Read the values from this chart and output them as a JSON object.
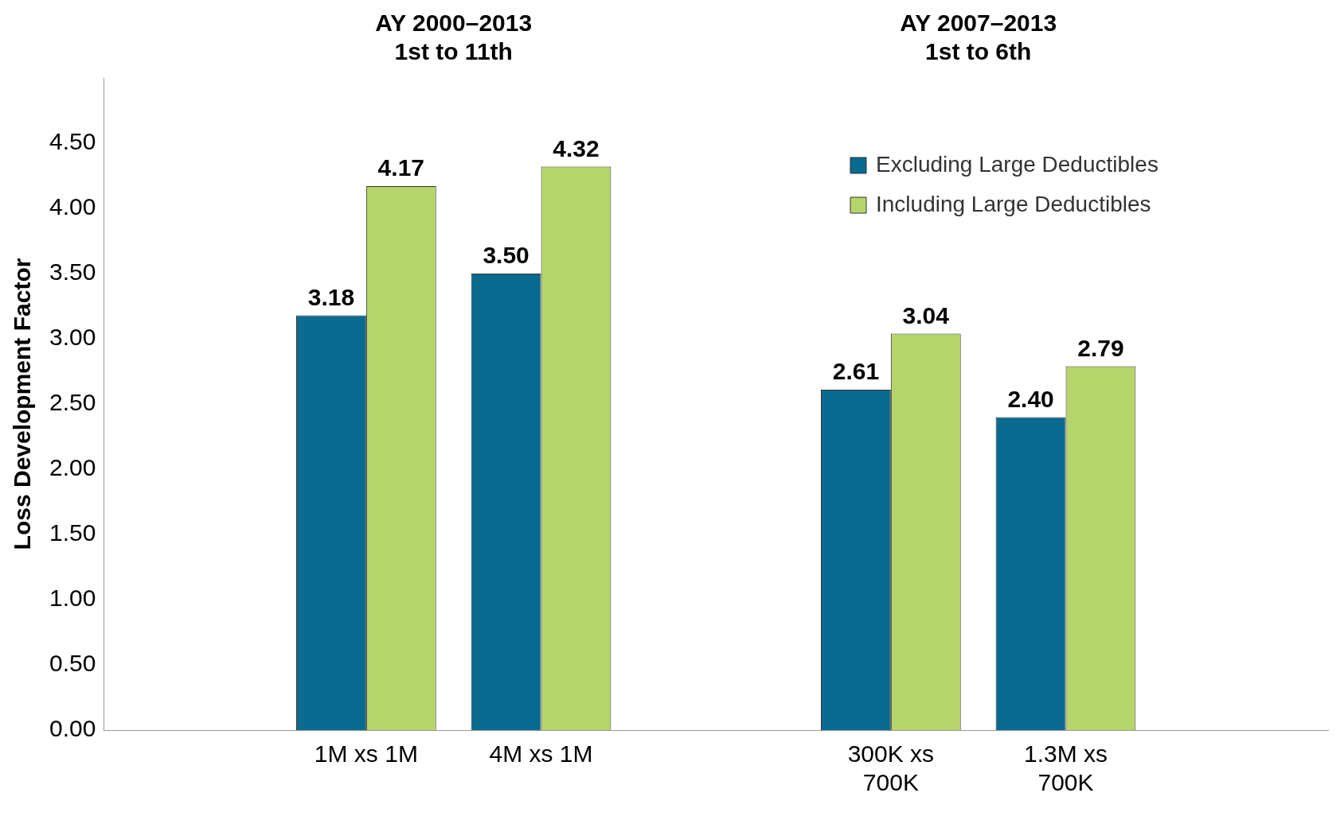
{
  "chart_data": {
    "type": "bar",
    "ylabel": "Loss Development Factor",
    "annotations": [
      "AY 2000–2013\n1st to 11th",
      "AY 2007–2013\n1st to 6th"
    ],
    "categories": [
      null,
      "1M xs 1M",
      "4M xs 1M",
      null,
      "300K xs 700K",
      "1.3M xs 700K",
      null
    ],
    "series": [
      {
        "name": "Excluding Large Deductibles",
        "color": "#0a6a8f",
        "values": [
          null,
          3.18,
          3.5,
          null,
          2.61,
          2.4,
          null
        ],
        "value_labels": [
          null,
          "3.18",
          "3.50",
          null,
          "2.61",
          "2.40",
          null
        ]
      },
      {
        "name": "Including Large Deductibles",
        "color": "#b5d56a",
        "values": [
          null,
          4.17,
          4.32,
          null,
          3.04,
          2.79,
          null
        ],
        "value_labels": [
          null,
          "4.17",
          "4.32",
          null,
          "3.04",
          "2.79",
          null
        ]
      }
    ],
    "ylim": [
      0,
      5
    ],
    "yticks": [
      {
        "value": 0,
        "label": "0.00"
      },
      {
        "value": 0.5,
        "label": "0.50"
      },
      {
        "value": 1,
        "label": "1.00"
      },
      {
        "value": 1.5,
        "label": "1.50"
      },
      {
        "value": 2,
        "label": "2.00"
      },
      {
        "value": 2.5,
        "label": "2.50"
      },
      {
        "value": 3,
        "label": "3.00"
      },
      {
        "value": 3.5,
        "label": "3.50"
      },
      {
        "value": 4,
        "label": "4.00"
      },
      {
        "value": 4.5,
        "label": "4.50"
      }
    ],
    "grid": false,
    "legend": "top right"
  }
}
